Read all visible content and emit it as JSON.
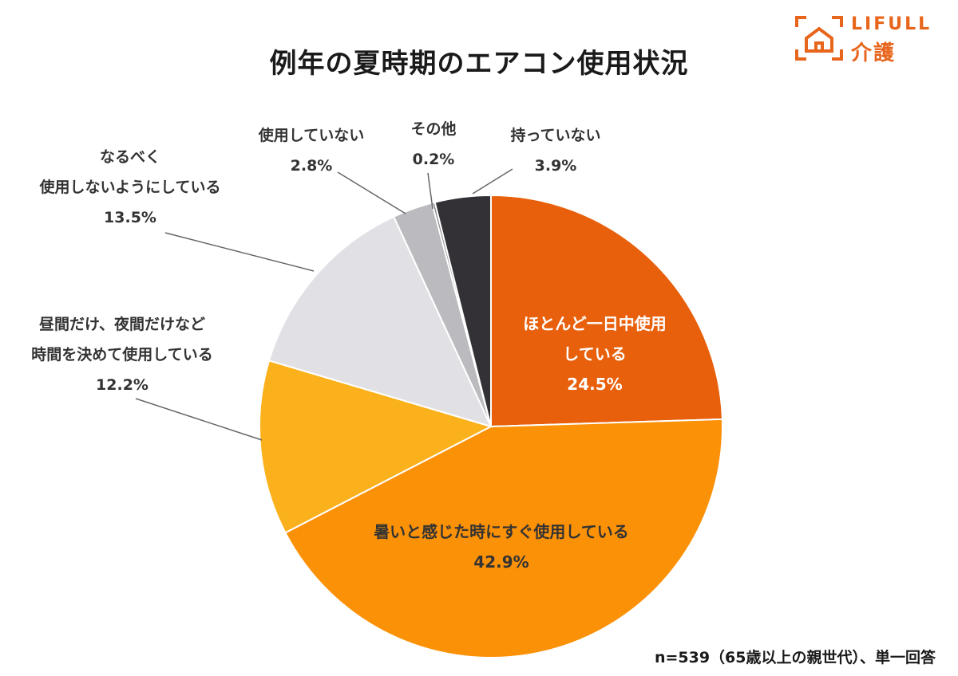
{
  "title": "例年の夏時期のエアコン使用状況",
  "logo": {
    "en": "LIFULL",
    "jp": "介護",
    "color": "#e8651c"
  },
  "footnote": "n=539（65歳以上の親世代）、単一回答",
  "chart_data": {
    "type": "pie",
    "title": "例年の夏時期のエアコン使用状況",
    "start_angle_deg": 0,
    "direction": "clockwise",
    "slices": [
      {
        "label_lines": [
          "ほとんど一日中使用",
          "している"
        ],
        "value": 24.5,
        "value_text": "24.5%",
        "color": "#e8600c",
        "label_position": "inside",
        "text_color": "#ffffff"
      },
      {
        "label_lines": [
          "暑いと感じた時にすぐ使用している"
        ],
        "value": 42.9,
        "value_text": "42.9%",
        "color": "#fb9107",
        "label_position": "inside",
        "text_color": "#333333"
      },
      {
        "label_lines": [
          "昼間だけ、夜間だけなど",
          "時間を決めて使用している"
        ],
        "value": 12.2,
        "value_text": "12.2%",
        "color": "#fbb11c",
        "label_position": "outside-left"
      },
      {
        "label_lines": [
          "なるべく",
          "使用しないようにしている"
        ],
        "value": 13.5,
        "value_text": "13.5%",
        "color": "#e1e1e5",
        "label_position": "outside-left"
      },
      {
        "label_lines": [
          "使用していない"
        ],
        "value": 2.8,
        "value_text": "2.8%",
        "color": "#bbbbbf",
        "label_position": "outside-top"
      },
      {
        "label_lines": [
          "その他"
        ],
        "value": 0.2,
        "value_text": "0.2%",
        "color": "#8c8c91",
        "label_position": "outside-top"
      },
      {
        "label_lines": [
          "持っていない"
        ],
        "value": 3.9,
        "value_text": "3.9%",
        "color": "#333036",
        "label_position": "outside-top"
      }
    ]
  }
}
